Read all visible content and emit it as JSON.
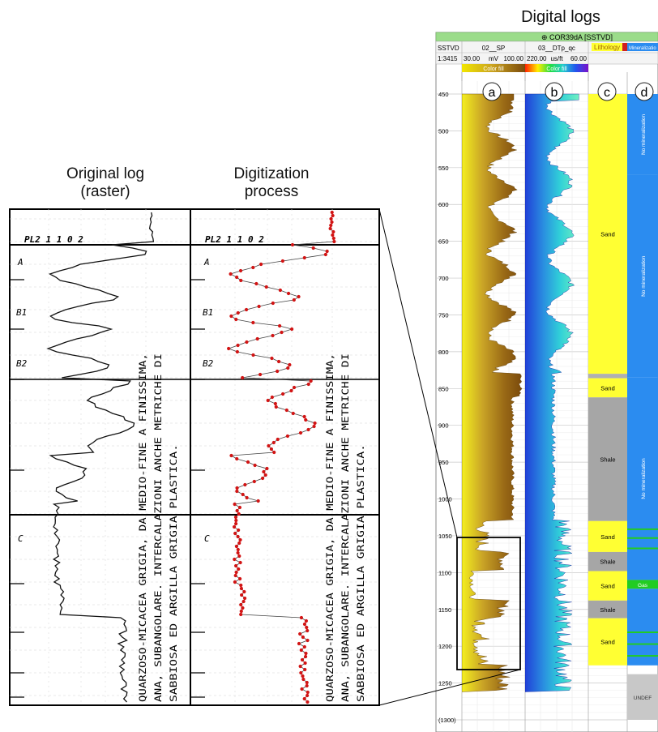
{
  "titles": {
    "digital_logs": "Digital logs",
    "original_log": "Original log",
    "original_log_sub": "(raster)",
    "digitization": "Digitization",
    "digitization_sub": "process"
  },
  "raster": {
    "curve_header": "PL2 1 1 0 2",
    "zone_labels": [
      "A",
      "B1",
      "B2",
      "C"
    ],
    "description_lines": [
      "QUARZOSO-MICACEA GRIGIA, DA MEDIO-FINE A FINISSIMA,",
      "ANA, SUBANGOLARE. INTERCALAZIONI ANCHE METRICHE DI",
      "SABBIOSA ED ARGILLA GRIGIA PLASTICA."
    ]
  },
  "digital": {
    "well_header": "⊕ COR39dA [SSTVD]",
    "depth_ref": "SSTVD",
    "scale": "1:3415",
    "sp": {
      "name": "02__SP",
      "min": "30.00",
      "unit": "mV",
      "max": "100.00",
      "fill": "Color fill"
    },
    "dt": {
      "name": "03__DTp_qc",
      "min": "220.00",
      "unit": "us/ft",
      "max": "60.00",
      "fill": "Color fill"
    },
    "lithology_header": "Lithology",
    "mineral_header": "Mineralizatio",
    "panel_letters": [
      "a",
      "b",
      "c",
      "d"
    ],
    "depth_ticks": [
      "450",
      "500",
      "550",
      "600",
      "650",
      "700",
      "750",
      "800",
      "850",
      "900",
      "950",
      "1000",
      "1050",
      "1100",
      "1150",
      "1200",
      "1250",
      "(1300)"
    ],
    "lithology": [
      {
        "top": 450,
        "base": 830,
        "label": "Sand",
        "color": "#ffff33"
      },
      {
        "top": 830,
        "base": 836,
        "label": "",
        "color": "#b0b0b0"
      },
      {
        "top": 836,
        "base": 862,
        "label": "Sand",
        "color": "#ffff33"
      },
      {
        "top": 862,
        "base": 1030,
        "label": "Shale",
        "color": "#a6a6a6"
      },
      {
        "top": 1030,
        "base": 1072,
        "label": "Sand",
        "color": "#ffff33"
      },
      {
        "top": 1072,
        "base": 1098,
        "label": "Shale",
        "color": "#a6a6a6"
      },
      {
        "top": 1098,
        "base": 1138,
        "label": "Sand",
        "color": "#ffff33"
      },
      {
        "top": 1138,
        "base": 1162,
        "label": "Shale",
        "color": "#a6a6a6"
      },
      {
        "top": 1162,
        "base": 1226,
        "label": "Sand",
        "color": "#ffff33"
      }
    ],
    "mineralization": [
      {
        "top": 450,
        "base": 560,
        "label": "No mineralization",
        "color": "#2b8cf0"
      },
      {
        "top": 560,
        "base": 835,
        "label": "No mineralization",
        "color": "#2b8cf0"
      },
      {
        "top": 835,
        "base": 1110,
        "label": "No mineralization",
        "color": "#2b8cf0"
      },
      {
        "top": 1110,
        "base": 1122,
        "label": "Gas",
        "color": "#22cc22"
      },
      {
        "top": 1122,
        "base": 1226,
        "label": "",
        "color": "#2b8cf0"
      },
      {
        "top": 1238,
        "base": 1300,
        "label": "UNDEF",
        "color": "#c8c8c8"
      }
    ]
  }
}
